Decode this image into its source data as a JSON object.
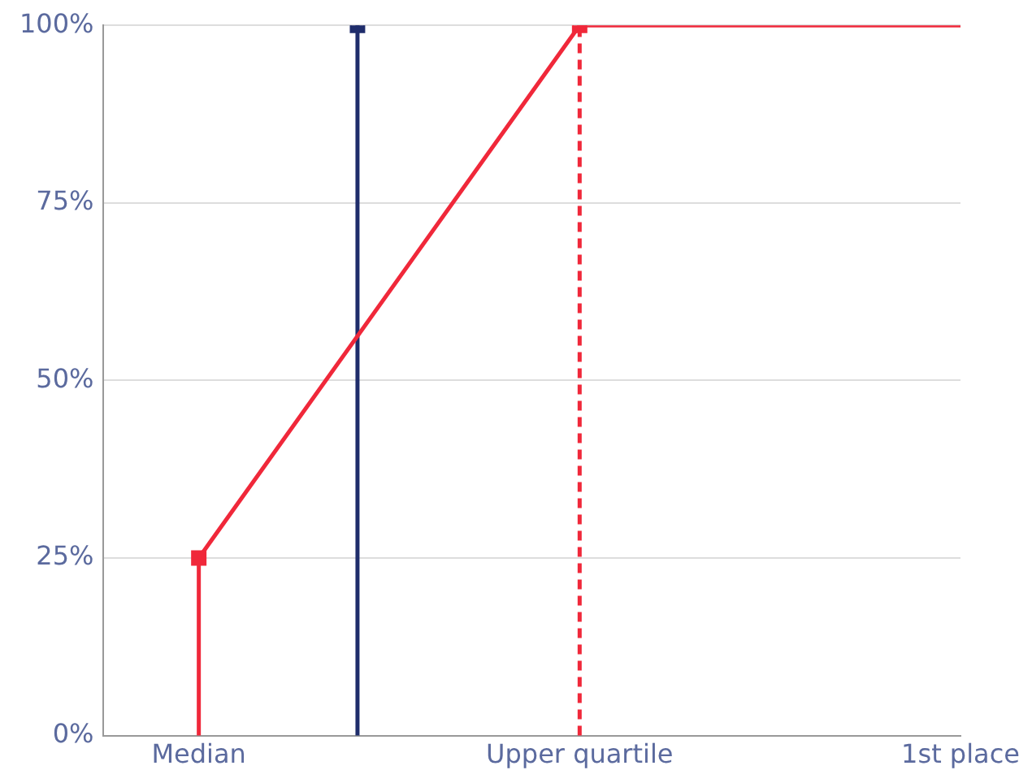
{
  "chart_data": {
    "type": "line",
    "categories": [
      null,
      null,
      null,
      "Median",
      null,
      null,
      null,
      null,
      null,
      null,
      null,
      null,
      null,
      null,
      null,
      "Upper quartile",
      null,
      null,
      null,
      null,
      null,
      null,
      null,
      null,
      null,
      null,
      null,
      "1st place"
    ],
    "ylim": [
      0,
      100
    ],
    "yticks": [
      {
        "value": 0,
        "label": "0%"
      },
      {
        "value": 25,
        "label": "25%"
      },
      {
        "value": 50,
        "label": "50%"
      },
      {
        "value": 75,
        "label": "75%"
      },
      {
        "value": 100,
        "label": "100%"
      }
    ],
    "grid": "y",
    "legend": false,
    "series": [
      {
        "color": "#f0283a",
        "marker": "none",
        "line_style": "solid",
        "values": [
          null,
          null,
          null,
          25,
          null,
          null,
          null,
          null,
          null,
          null,
          null,
          null,
          null,
          null,
          null,
          100,
          null,
          null,
          null,
          null,
          null,
          null,
          null,
          null,
          null,
          null,
          null,
          100
        ]
      },
      {
        "type": "lollipop",
        "color": "#f0283a",
        "marker": "square",
        "line_style": "solid",
        "values": [
          null,
          null,
          null,
          25,
          null,
          null,
          null,
          null,
          null,
          null,
          null,
          null,
          null,
          null,
          null,
          null,
          null,
          null,
          null,
          null,
          null,
          null,
          null,
          null,
          null,
          null,
          null,
          null
        ]
      },
      {
        "type": "lollipop",
        "color": "#f0283a",
        "marker": "square",
        "line_style": "dashed",
        "values": [
          null,
          null,
          null,
          null,
          null,
          null,
          null,
          null,
          null,
          null,
          null,
          null,
          null,
          null,
          null,
          100,
          null,
          null,
          null,
          null,
          null,
          null,
          null,
          null,
          null,
          null,
          null,
          null
        ]
      },
      {
        "type": "lollipop",
        "color": "#1f2d6b",
        "marker": "square",
        "line_style": "solid",
        "values": [
          null,
          null,
          null,
          null,
          null,
          null,
          null,
          null,
          100,
          null,
          null,
          null,
          null,
          null,
          null,
          null,
          null,
          null,
          null,
          null,
          null,
          null,
          null,
          null,
          null,
          null,
          null,
          null
        ]
      }
    ]
  }
}
